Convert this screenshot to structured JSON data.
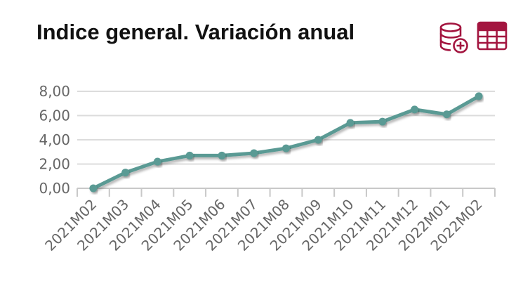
{
  "header": {
    "title": "Indice general. Variación anual"
  },
  "toolbar": {
    "icons": [
      "database-add-icon",
      "table-icon"
    ],
    "accent_color": "#a3153f"
  },
  "chart_data": {
    "type": "line",
    "title": "Indice general. Variación anual",
    "xlabel": "",
    "ylabel": "",
    "categories": [
      "2021M02",
      "2021M03",
      "2021M04",
      "2021M05",
      "2021M06",
      "2021M07",
      "2021M08",
      "2021M09",
      "2021M10",
      "2021M11",
      "2021M12",
      "2022M01",
      "2022M02"
    ],
    "series": [
      {
        "values": [
          0.0,
          1.3,
          2.2,
          2.7,
          2.7,
          2.9,
          3.3,
          4.0,
          5.4,
          5.5,
          6.5,
          6.1,
          7.6
        ]
      }
    ],
    "y_ticks": [
      "0,00",
      "2,00",
      "4,00",
      "6,00",
      "8,00"
    ],
    "ylim": [
      0,
      8
    ],
    "grid": true,
    "legend": "none",
    "line_color": "#5a9a94"
  }
}
